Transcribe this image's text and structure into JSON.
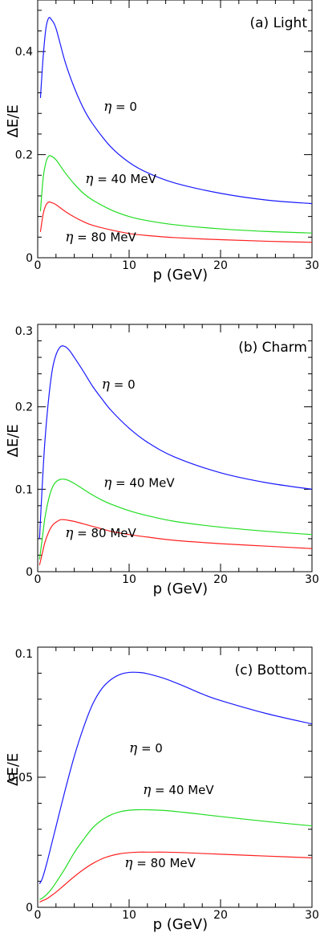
{
  "chart_data": [
    {
      "type": "line",
      "panel_label": "(a) Light",
      "xlabel": "p (GeV)",
      "ylabel": "ΔE/E",
      "xlim": [
        0,
        30
      ],
      "ylim": [
        0,
        0.5
      ],
      "xticks": [
        0,
        10,
        20,
        30
      ],
      "xtick_labels": [
        "0",
        "10",
        "20",
        "30"
      ],
      "yticks": [
        0,
        0.2,
        0.4
      ],
      "ytick_labels": [
        "0",
        "0.2",
        "0.4"
      ],
      "grid": false,
      "series": [
        {
          "color": "#1a1aff",
          "x": [
            0.3,
            0.6,
            0.9,
            1.2,
            1.5,
            2,
            3,
            4,
            5,
            6,
            8,
            10,
            12,
            15,
            20,
            25,
            30
          ],
          "y": [
            0.31,
            0.39,
            0.445,
            0.465,
            0.462,
            0.445,
            0.38,
            0.33,
            0.29,
            0.26,
            0.215,
            0.185,
            0.165,
            0.145,
            0.125,
            0.112,
            0.105
          ]
        },
        {
          "color": "#22dd22",
          "x": [
            0.3,
            0.6,
            0.9,
            1.2,
            1.5,
            2,
            3,
            4,
            5,
            6,
            8,
            10,
            12,
            15,
            20,
            25,
            30
          ],
          "y": [
            0.09,
            0.155,
            0.185,
            0.197,
            0.197,
            0.19,
            0.165,
            0.143,
            0.125,
            0.112,
            0.093,
            0.08,
            0.072,
            0.064,
            0.056,
            0.051,
            0.048
          ]
        },
        {
          "color": "#ff2020",
          "x": [
            0.3,
            0.6,
            0.9,
            1.2,
            1.5,
            2,
            3,
            4,
            5,
            6,
            8,
            10,
            12,
            15,
            20,
            25,
            30
          ],
          "y": [
            0.05,
            0.085,
            0.102,
            0.108,
            0.107,
            0.103,
            0.09,
            0.079,
            0.07,
            0.063,
            0.054,
            0.047,
            0.043,
            0.039,
            0.035,
            0.032,
            0.03
          ]
        }
      ],
      "annotations": [
        {
          "eta": "η",
          "text": " = 0",
          "x": 7.2,
          "y": 0.285
        },
        {
          "eta": "η",
          "text": " = 40 MeV",
          "x": 5.2,
          "y": 0.145
        },
        {
          "eta": "η",
          "text": " = 80 MeV",
          "x": 3.0,
          "y": 0.032
        }
      ]
    },
    {
      "type": "line",
      "panel_label": "(b) Charm",
      "xlabel": "p (GeV)",
      "ylabel": "ΔE/E",
      "xlim": [
        0,
        30
      ],
      "ylim": [
        0,
        0.3
      ],
      "xticks": [
        0,
        10,
        20,
        30
      ],
      "xtick_labels": [
        "0",
        "10",
        "20",
        "30"
      ],
      "yticks": [
        0,
        0.1,
        0.2,
        0.3
      ],
      "ytick_labels": [
        "0",
        "0.1",
        "0.2",
        "0.3"
      ],
      "grid": false,
      "series": [
        {
          "color": "#1a1aff",
          "x": [
            0.2,
            0.5,
            0.8,
            1.2,
            1.6,
            2,
            2.5,
            3,
            3.5,
            4,
            5,
            6,
            7,
            8,
            10,
            12,
            15,
            20,
            25,
            30
          ],
          "y": [
            0.04,
            0.105,
            0.16,
            0.21,
            0.245,
            0.263,
            0.273,
            0.273,
            0.268,
            0.26,
            0.243,
            0.225,
            0.21,
            0.196,
            0.174,
            0.157,
            0.139,
            0.12,
            0.108,
            0.1
          ]
        },
        {
          "color": "#22dd22",
          "x": [
            0.2,
            0.5,
            0.8,
            1.2,
            1.6,
            2,
            2.5,
            3,
            3.5,
            4,
            5,
            6,
            7,
            8,
            10,
            12,
            15,
            20,
            25,
            30
          ],
          "y": [
            0.015,
            0.04,
            0.066,
            0.088,
            0.102,
            0.109,
            0.112,
            0.112,
            0.11,
            0.107,
            0.1,
            0.093,
            0.087,
            0.082,
            0.074,
            0.068,
            0.061,
            0.054,
            0.049,
            0.045
          ]
        },
        {
          "color": "#ff2020",
          "x": [
            0.2,
            0.5,
            0.8,
            1.2,
            1.6,
            2,
            2.5,
            3,
            3.5,
            4,
            5,
            6,
            7,
            8,
            10,
            12,
            15,
            20,
            25,
            30
          ],
          "y": [
            0.008,
            0.022,
            0.036,
            0.048,
            0.056,
            0.06,
            0.063,
            0.063,
            0.062,
            0.061,
            0.058,
            0.055,
            0.052,
            0.049,
            0.045,
            0.042,
            0.038,
            0.034,
            0.031,
            0.028
          ]
        }
      ],
      "annotations": [
        {
          "eta": "η",
          "text": " = 0",
          "x": 7.0,
          "y": 0.222
        },
        {
          "eta": "η",
          "text": " = 40 MeV",
          "x": 7.2,
          "y": 0.103
        },
        {
          "eta": "η",
          "text": " = 80 MeV",
          "x": 3.0,
          "y": 0.042
        }
      ]
    },
    {
      "type": "line",
      "panel_label": "(c) Bottom",
      "xlabel": "p (GeV)",
      "ylabel": "ΔE/E",
      "xlim": [
        0,
        30
      ],
      "ylim": [
        0,
        0.1
      ],
      "xticks": [
        0,
        10,
        20,
        30
      ],
      "xtick_labels": [
        "0",
        "10",
        "20",
        "30"
      ],
      "yticks": [
        0,
        0.05,
        0.1
      ],
      "ytick_labels": [
        "0",
        "0.05",
        "0.1"
      ],
      "grid": false,
      "series": [
        {
          "color": "#1a1aff",
          "x": [
            0.2,
            0.5,
            1,
            1.5,
            2,
            3,
            4,
            5,
            6,
            7,
            8,
            9,
            10,
            11,
            12,
            14,
            16,
            18,
            20,
            25,
            30
          ],
          "y": [
            0.009,
            0.011,
            0.017,
            0.024,
            0.031,
            0.045,
            0.058,
            0.069,
            0.078,
            0.084,
            0.0875,
            0.0895,
            0.0903,
            0.0903,
            0.0898,
            0.0878,
            0.085,
            0.082,
            0.0795,
            0.0745,
            0.0705
          ]
        },
        {
          "color": "#22dd22",
          "x": [
            0.2,
            0.5,
            1,
            1.5,
            2,
            3,
            4,
            5,
            6,
            7,
            8,
            9,
            10,
            11,
            12,
            14,
            16,
            18,
            20,
            25,
            30
          ],
          "y": [
            0.003,
            0.0035,
            0.005,
            0.007,
            0.0095,
            0.015,
            0.021,
            0.026,
            0.0305,
            0.0335,
            0.0355,
            0.0367,
            0.0373,
            0.0375,
            0.0375,
            0.0372,
            0.0365,
            0.0357,
            0.0349,
            0.033,
            0.0313
          ]
        },
        {
          "color": "#ff2020",
          "x": [
            0.2,
            0.5,
            1,
            1.5,
            2,
            3,
            4,
            5,
            6,
            7,
            8,
            9,
            10,
            11,
            12,
            14,
            16,
            18,
            20,
            25,
            30
          ],
          "y": [
            0.002,
            0.0025,
            0.0033,
            0.0045,
            0.0058,
            0.0088,
            0.0118,
            0.0145,
            0.0168,
            0.0186,
            0.0198,
            0.0206,
            0.021,
            0.0212,
            0.0212,
            0.0212,
            0.021,
            0.0207,
            0.0204,
            0.0197,
            0.019
          ]
        }
      ],
      "annotations": [
        {
          "eta": "η",
          "text": " = 0",
          "x": 10.0,
          "y": 0.0595
        },
        {
          "eta": "η",
          "text": " = 40 MeV",
          "x": 11.5,
          "y": 0.0435
        },
        {
          "eta": "η",
          "text": " = 80 MeV",
          "x": 9.5,
          "y": 0.0155
        }
      ]
    }
  ]
}
